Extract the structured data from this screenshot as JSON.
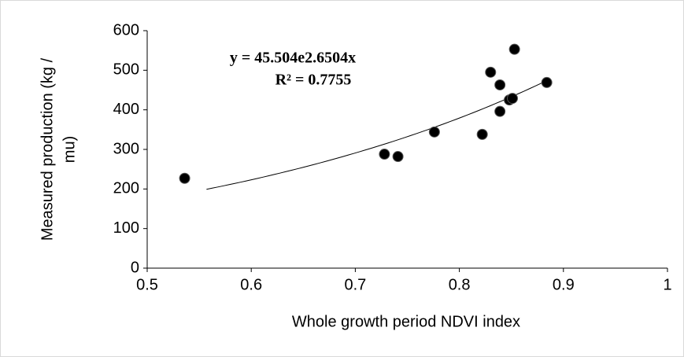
{
  "chart_data": {
    "type": "scatter",
    "xlabel": "Whole growth period NDVI index",
    "ylabel": [
      "Measured production (kg /",
      "mu)"
    ],
    "annotations": [
      "y = 45.504e2.6504x",
      "R² = 0.7755"
    ],
    "x": [
      0.536,
      0.728,
      0.741,
      0.776,
      0.822,
      0.83,
      0.839,
      0.839,
      0.848,
      0.851,
      0.853,
      0.884
    ],
    "values": [
      227,
      288,
      282,
      344,
      338,
      495,
      463,
      396,
      425,
      429,
      553,
      469
    ],
    "color": "#000000",
    "trendline": {
      "a": 45.504,
      "b": 2.6504,
      "xlim": [
        0.557,
        0.884
      ]
    },
    "xlim": [
      0.5,
      1
    ],
    "xticks": [
      0.5,
      0.6,
      0.7,
      0.8,
      0.9,
      1
    ],
    "ylim": [
      0,
      600
    ],
    "yticks": [
      0,
      100,
      200,
      300,
      400,
      500,
      600
    ],
    "grid": false
  }
}
